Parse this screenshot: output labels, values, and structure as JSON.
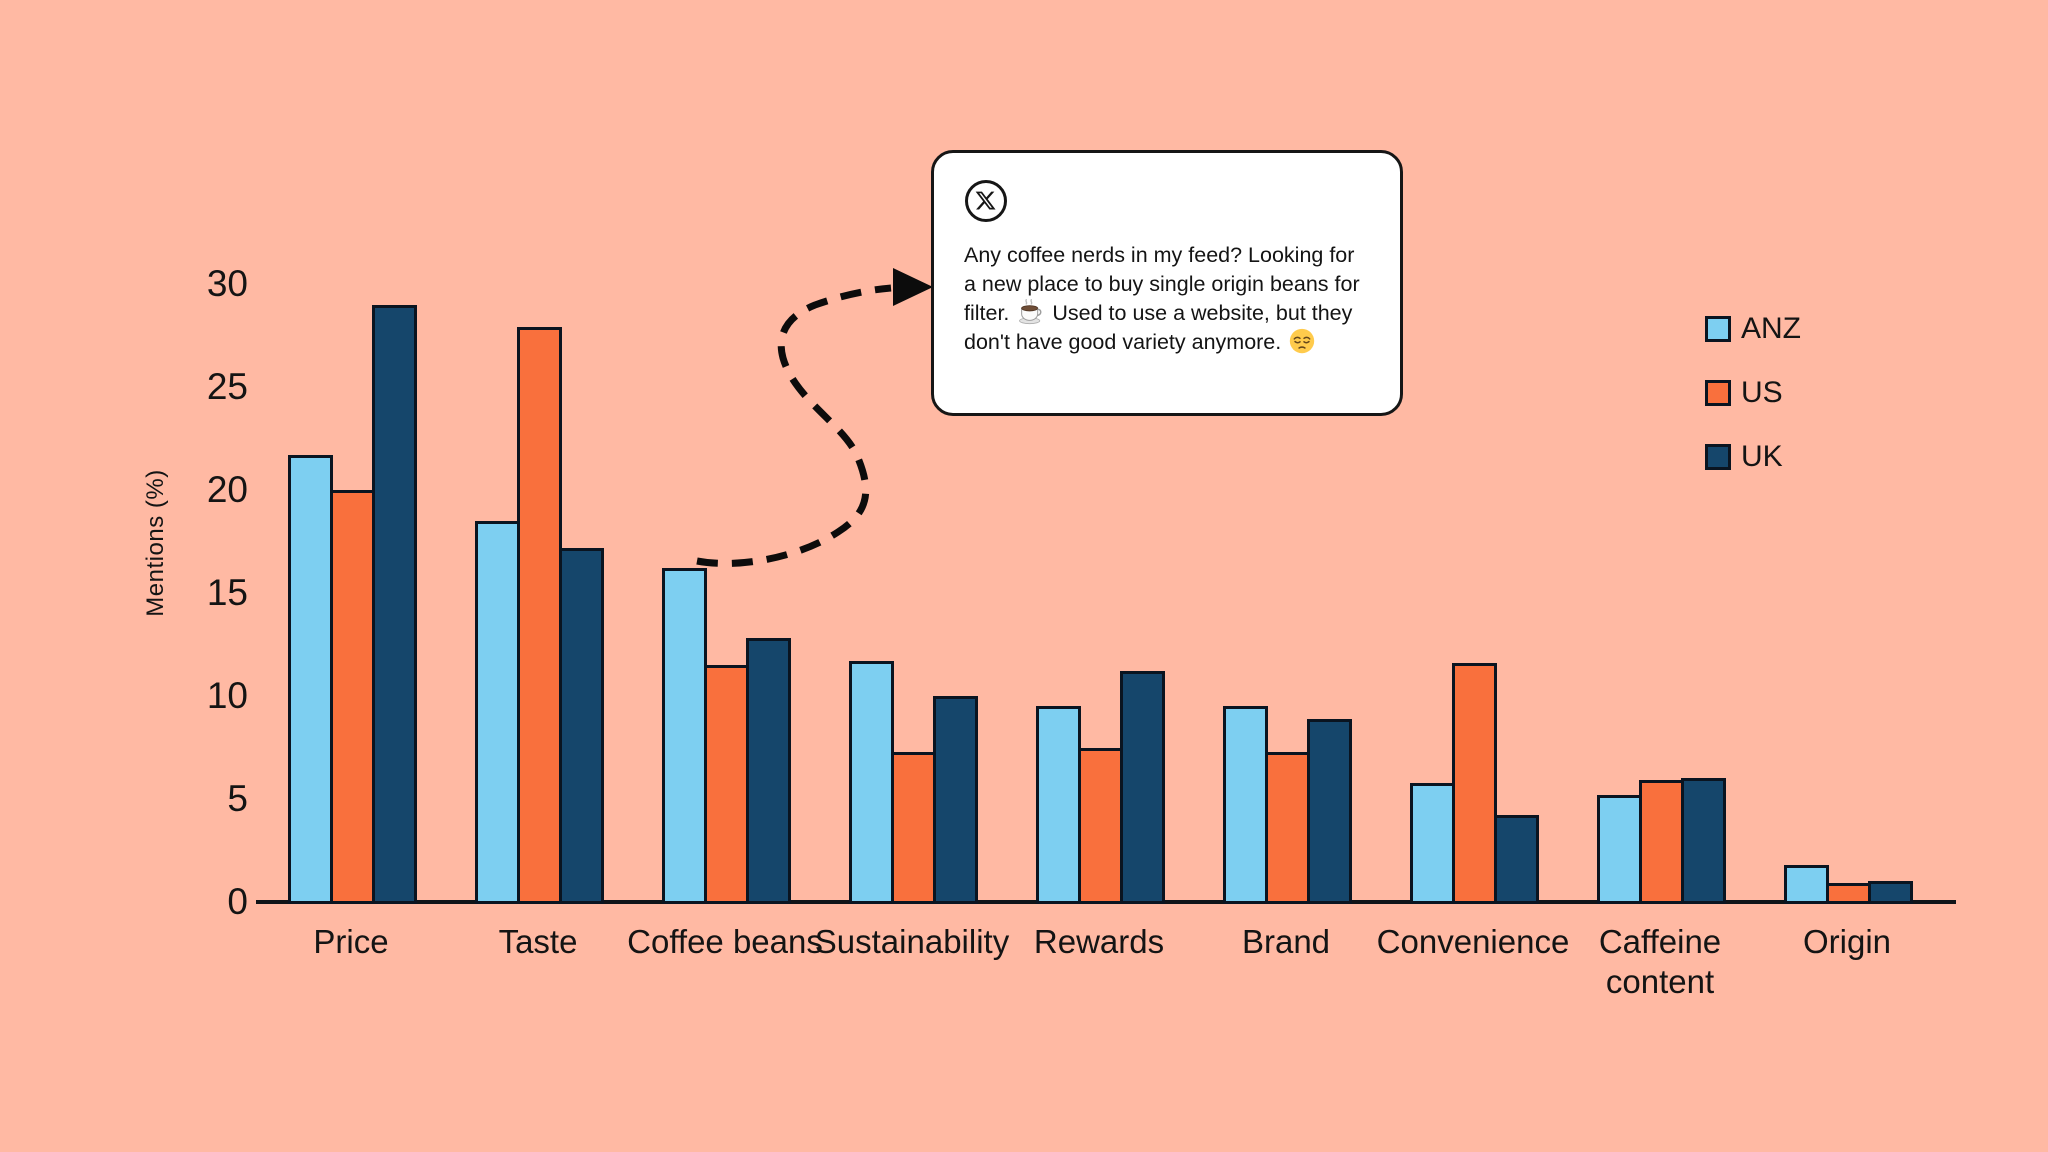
{
  "background_color": "#FFB9A3",
  "chart_data": {
    "type": "bar",
    "title": "",
    "ylabel": "Mentions (%)",
    "xlabel": "",
    "ylim": [
      0,
      30
    ],
    "yticks": [
      0,
      5,
      10,
      15,
      20,
      25,
      30
    ],
    "grid": false,
    "legend_position": "right",
    "bar_border_color": "#0A1420",
    "categories": [
      "Price",
      "Taste",
      "Coffee beans",
      "Sustainability",
      "Rewards",
      "Brand",
      "Convenience",
      "Caffeine content",
      "Origin"
    ],
    "series": [
      {
        "name": "ANZ",
        "color": "#7DCFF1",
        "values": [
          21.7,
          18.5,
          16.2,
          11.7,
          9.5,
          9.5,
          5.8,
          5.2,
          1.8
        ]
      },
      {
        "name": "US",
        "color": "#F9703D",
        "values": [
          20.0,
          27.9,
          11.5,
          7.3,
          7.5,
          7.3,
          11.6,
          5.9,
          0.9
        ]
      },
      {
        "name": "UK",
        "color": "#15466B",
        "values": [
          29.0,
          17.2,
          12.8,
          10.0,
          11.2,
          8.9,
          4.2,
          6.0,
          1.0
        ]
      }
    ]
  },
  "annotation": {
    "icon": "x-social-logo",
    "text_part1": "Any coffee nerds in my feed? Looking for a new place to buy single origin beans for filter.",
    "coffee_emoji": "☕",
    "text_part2": "Used to use a website, but they don't have good variety anymore.",
    "pensive_emoji": "😔"
  }
}
